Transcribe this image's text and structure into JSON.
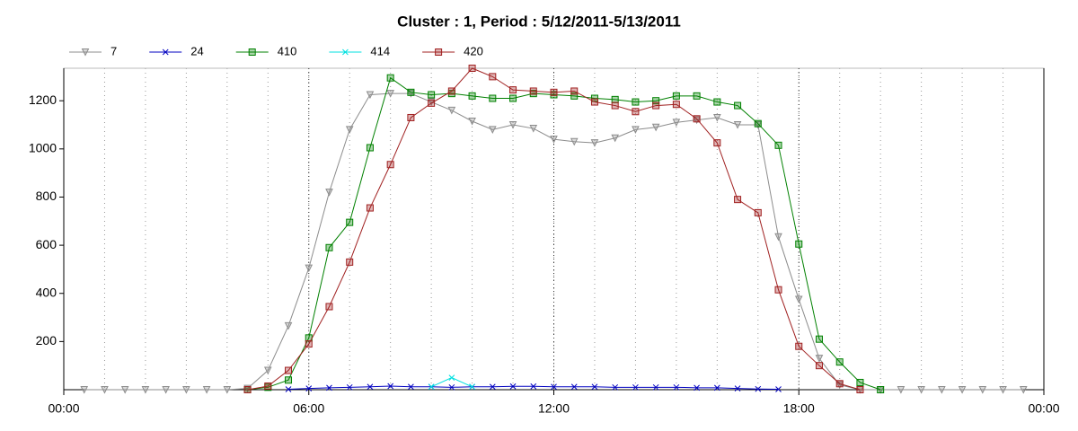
{
  "chart_data": {
    "type": "line",
    "title": "Cluster : 1, Period : 5/12/2011-5/13/2011",
    "x": [
      0.5,
      1,
      1.5,
      2,
      2.5,
      3,
      3.5,
      4,
      4.5,
      5,
      5.5,
      6,
      6.5,
      7,
      7.5,
      8,
      8.5,
      9,
      9.5,
      10,
      10.5,
      11,
      11.5,
      12,
      12.5,
      13,
      13.5,
      14,
      14.5,
      15,
      15.5,
      16,
      16.5,
      17,
      17.5,
      18,
      18.5,
      19,
      19.5,
      20,
      20.5,
      21,
      21.5,
      22,
      22.5,
      23,
      23.5
    ],
    "series": [
      {
        "name": "7",
        "color": "#8c8c8c",
        "marker": "triangle-down",
        "values": [
          0,
          0,
          0,
          0,
          0,
          0,
          0,
          0,
          5,
          80,
          265,
          505,
          820,
          1080,
          1225,
          1230,
          1230,
          1195,
          1160,
          1115,
          1080,
          1100,
          1085,
          1040,
          1030,
          1025,
          1045,
          1080,
          1090,
          1110,
          1120,
          1130,
          1100,
          1100,
          635,
          375,
          130,
          20,
          0,
          0,
          0,
          0,
          0,
          0,
          0,
          0,
          0
        ]
      },
      {
        "name": "24",
        "color": "#0000c0",
        "marker": "x",
        "values": [
          null,
          null,
          null,
          null,
          null,
          null,
          null,
          null,
          null,
          null,
          2,
          5,
          8,
          10,
          12,
          15,
          12,
          12,
          10,
          12,
          12,
          14,
          14,
          12,
          12,
          12,
          10,
          10,
          10,
          10,
          8,
          8,
          5,
          3,
          2,
          null,
          null,
          null,
          null,
          null,
          null,
          null,
          null,
          null,
          null,
          null,
          null
        ]
      },
      {
        "name": "410",
        "color": "#008000",
        "marker": "square",
        "values": [
          null,
          null,
          null,
          null,
          null,
          null,
          null,
          null,
          0,
          10,
          40,
          215,
          590,
          695,
          1005,
          1295,
          1235,
          1225,
          1230,
          1220,
          1210,
          1210,
          1230,
          1225,
          1220,
          1210,
          1205,
          1195,
          1200,
          1220,
          1220,
          1195,
          1180,
          1105,
          1015,
          605,
          210,
          115,
          30,
          0,
          null,
          null,
          null,
          null,
          null,
          null,
          null
        ]
      },
      {
        "name": "414",
        "color": "#00e0e0",
        "marker": "x",
        "values": [
          null,
          null,
          null,
          null,
          null,
          null,
          null,
          null,
          null,
          null,
          null,
          null,
          null,
          null,
          null,
          null,
          null,
          12,
          50,
          12,
          null,
          null,
          null,
          null,
          null,
          null,
          null,
          null,
          null,
          null,
          null,
          null,
          null,
          null,
          null,
          null,
          null,
          null,
          null,
          null,
          null,
          null,
          null,
          null,
          null,
          null,
          null
        ]
      },
      {
        "name": "420",
        "color": "#a02020",
        "marker": "square",
        "values": [
          null,
          null,
          null,
          null,
          null,
          null,
          null,
          null,
          0,
          15,
          80,
          190,
          345,
          530,
          755,
          935,
          1130,
          1190,
          1240,
          1335,
          1300,
          1245,
          1240,
          1235,
          1240,
          1195,
          1180,
          1155,
          1180,
          1185,
          1125,
          1025,
          790,
          735,
          415,
          180,
          100,
          25,
          0,
          null,
          null,
          null,
          null,
          null,
          null,
          null,
          null
        ]
      }
    ],
    "xlim": [
      0,
      24
    ],
    "xticks": [
      {
        "value": 0,
        "label": "00:00"
      },
      {
        "value": 6,
        "label": "06:00"
      },
      {
        "value": 12,
        "label": "12:00"
      },
      {
        "value": 18,
        "label": "18:00"
      },
      {
        "value": 24,
        "label": "00:00"
      }
    ],
    "xgrid": [
      1,
      2,
      3,
      4,
      5,
      6,
      7,
      8,
      9,
      10,
      11,
      12,
      13,
      14,
      15,
      16,
      17,
      18,
      19,
      20,
      21,
      22,
      23
    ],
    "ylim": [
      0,
      1335
    ],
    "yticks": [
      200,
      400,
      600,
      800,
      1000,
      1200
    ],
    "legend": "top-left"
  }
}
